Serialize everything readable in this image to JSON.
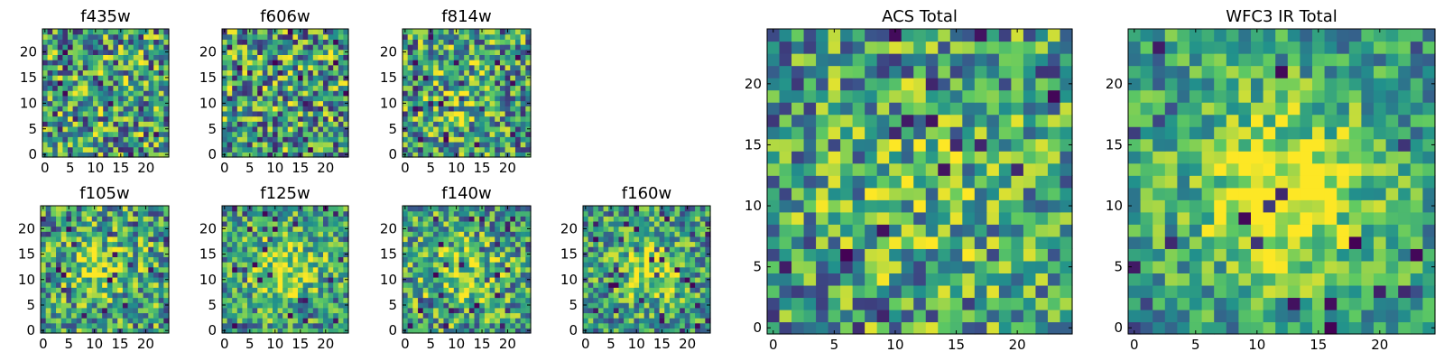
{
  "chart_data": {
    "type": "heatmap",
    "colormap": "viridis",
    "colors": [
      "#440154",
      "#3b528b",
      "#21918c",
      "#5ec962",
      "#fde725"
    ],
    "panels": [
      {
        "id": "f435w",
        "title": "f435w",
        "size": 25,
        "xlim": [
          0,
          24
        ],
        "ylim": [
          0,
          24
        ],
        "xticks": [
          0,
          5,
          10,
          15,
          20
        ],
        "yticks": [
          0,
          5,
          10,
          15,
          20
        ],
        "seed": 435,
        "noise": 0.45,
        "peak": 0.05,
        "spread": 6,
        "center": [
          12,
          12
        ],
        "low": 0.05
      },
      {
        "id": "f606w",
        "title": "f606w",
        "size": 25,
        "xlim": [
          0,
          24
        ],
        "ylim": [
          0,
          24
        ],
        "xticks": [
          0,
          5,
          10,
          15,
          20
        ],
        "yticks": [
          0,
          5,
          10,
          15,
          20
        ],
        "seed": 606,
        "noise": 0.45,
        "peak": 0.05,
        "spread": 6,
        "center": [
          12,
          12
        ],
        "low": 0.05
      },
      {
        "id": "f814w",
        "title": "f814w",
        "size": 25,
        "xlim": [
          0,
          24
        ],
        "ylim": [
          0,
          24
        ],
        "xticks": [
          0,
          5,
          10,
          15,
          20
        ],
        "yticks": [
          0,
          5,
          10,
          15,
          20
        ],
        "seed": 814,
        "noise": 0.42,
        "peak": 0.15,
        "spread": 5,
        "center": [
          11,
          12
        ],
        "low": 0.05
      },
      {
        "id": "f105w",
        "title": "f105w",
        "size": 25,
        "xlim": [
          0,
          24
        ],
        "ylim": [
          0,
          24
        ],
        "xticks": [
          0,
          5,
          10,
          15,
          20
        ],
        "yticks": [
          0,
          5,
          10,
          15,
          20
        ],
        "seed": 105,
        "noise": 0.4,
        "peak": 0.25,
        "spread": 5,
        "center": [
          12,
          13
        ],
        "low": 0.04
      },
      {
        "id": "f125w",
        "title": "f125w",
        "size": 25,
        "xlim": [
          0,
          24
        ],
        "ylim": [
          0,
          24
        ],
        "xticks": [
          0,
          5,
          10,
          15,
          20
        ],
        "yticks": [
          0,
          5,
          10,
          15,
          20
        ],
        "seed": 125,
        "noise": 0.35,
        "peak": 0.35,
        "spread": 5,
        "center": [
          12,
          12
        ],
        "low": 0.04
      },
      {
        "id": "f140w",
        "title": "f140w",
        "size": 25,
        "xlim": [
          0,
          24
        ],
        "ylim": [
          0,
          24
        ],
        "xticks": [
          0,
          5,
          10,
          15,
          20
        ],
        "yticks": [
          0,
          5,
          10,
          15,
          20
        ],
        "seed": 140,
        "noise": 0.38,
        "peak": 0.3,
        "spread": 5,
        "center": [
          11,
          11
        ],
        "low": 0.05
      },
      {
        "id": "f160w",
        "title": "f160w",
        "size": 25,
        "xlim": [
          0,
          24
        ],
        "ylim": [
          0,
          24
        ],
        "xticks": [
          0,
          5,
          10,
          15,
          20
        ],
        "yticks": [
          0,
          5,
          10,
          15,
          20
        ],
        "seed": 160,
        "noise": 0.35,
        "peak": 0.4,
        "spread": 4,
        "center": [
          13,
          12
        ],
        "low": 0.06
      },
      {
        "id": "acs-total",
        "title": "ACS Total",
        "size": 25,
        "xlim": [
          0,
          24
        ],
        "ylim": [
          0,
          24
        ],
        "xticks": [
          0,
          5,
          10,
          15,
          20
        ],
        "yticks": [
          0,
          5,
          10,
          15,
          20
        ],
        "seed": 900,
        "noise": 0.4,
        "peak": 0.12,
        "spread": 6,
        "center": [
          12,
          12
        ],
        "low": 0.03
      },
      {
        "id": "wfc3-ir-total",
        "title": "WFC3 IR Total",
        "size": 25,
        "xlim": [
          0,
          24
        ],
        "ylim": [
          0,
          24
        ],
        "xticks": [
          0,
          5,
          10,
          15,
          20
        ],
        "yticks": [
          0,
          5,
          10,
          15,
          20
        ],
        "seed": 901,
        "noise": 0.28,
        "peak": 0.45,
        "spread": 5,
        "center": [
          12,
          11
        ],
        "low": 0.04
      }
    ]
  }
}
